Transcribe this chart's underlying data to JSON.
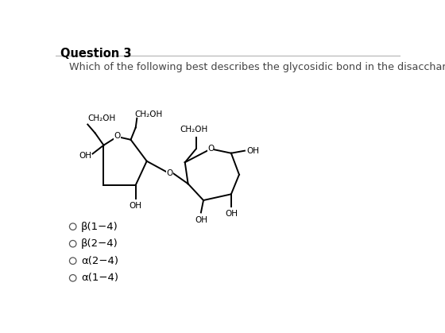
{
  "title": "Question 3",
  "question": "Which of the following best describes the glycosidic bond in the disaccharide shown?",
  "options": [
    "β(1−4)",
    "β(2−4)",
    "α(2−4)",
    "α(1−4)"
  ],
  "bg_color": "#ffffff",
  "title_color": "#000000",
  "question_color": "#444444",
  "option_color": "#000000",
  "title_fontsize": 10.5,
  "question_fontsize": 9.2,
  "option_fontsize": 9.5,
  "chem_fontsize": 7.5,
  "lw": 1.4
}
